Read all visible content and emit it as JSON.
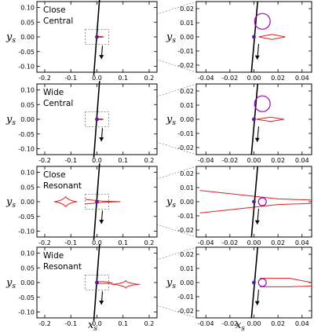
{
  "axes_labels": {
    "x_main": "x",
    "x_sub": "s",
    "y_main": "y",
    "y_sub": "s"
  },
  "chart_data": {
    "type": "scatter",
    "grid": false,
    "left_axes": {
      "xlim": [
        -0.23,
        0.23
      ],
      "ylim": [
        -0.12,
        0.12
      ],
      "xticks": [
        "-0.2",
        "-0.1",
        "0.0",
        "0.1",
        "0.2"
      ],
      "yticks": [
        "0.10",
        "0.05",
        "0.00",
        "-0.05",
        "-0.10"
      ]
    },
    "right_axes": {
      "xlim": [
        -0.048,
        0.048
      ],
      "ylim": [
        -0.025,
        0.025
      ],
      "xticks": [
        "-0.04",
        "-0.02",
        "0.00",
        "0.02",
        "0.04"
      ],
      "yticks": [
        "0.02",
        "0.01",
        "0.00",
        "-0.01",
        "-0.02"
      ]
    },
    "zoom_box": {
      "x": [
        -0.045,
        0.045
      ],
      "y": [
        -0.025,
        0.025
      ]
    },
    "source_trajectory": {
      "x": [
        0.01,
        -0.012
      ],
      "y": [
        0.13,
        -0.13
      ]
    },
    "rows": [
      {
        "title_line1": "Close",
        "title_line2": "Central",
        "lens_position": [
          0.0,
          0.0
        ],
        "source_position": [
          0.007,
          0.011
        ],
        "caustic": [
          [
            0.004,
            0.0
          ],
          [
            0.015,
            0.0018
          ],
          [
            0.026,
            0.0
          ],
          [
            0.015,
            -0.0018
          ],
          [
            0.004,
            0.0
          ]
        ]
      },
      {
        "title_line1": "Wide",
        "title_line2": "Central",
        "lens_position": [
          0.0,
          0.0
        ],
        "source_position": [
          0.007,
          0.011
        ],
        "caustic": [
          [
            0.002,
            0.0
          ],
          [
            0.014,
            0.0015
          ],
          [
            0.025,
            0.0
          ],
          [
            0.014,
            -0.0015
          ],
          [
            0.002,
            0.0
          ]
        ]
      },
      {
        "title_line1": "Close",
        "title_line2": "Resonant",
        "lens_position": [
          0.0,
          0.0
        ],
        "source_position": [
          0.007,
          0.0
        ],
        "caustic": [
          [
            -0.045,
            0.008
          ],
          [
            0.02,
            0.002
          ],
          [
            0.09,
            0.0
          ],
          [
            0.02,
            -0.002
          ],
          [
            -0.045,
            -0.008
          ]
        ],
        "planetary_caustic": {
          "center": [
            -0.12,
            0.0
          ],
          "half_width": 0.045,
          "half_height": 0.018
        }
      },
      {
        "title_line1": "Wide",
        "title_line2": "Resonant",
        "lens_position": [
          0.0,
          0.0
        ],
        "source_position": [
          0.007,
          0.0
        ],
        "caustic": [
          [
            0.005,
            0.003
          ],
          [
            0.03,
            0.003
          ],
          [
            0.06,
            -0.002
          ],
          [
            0.03,
            -0.003
          ],
          [
            0.005,
            -0.003
          ]
        ],
        "planetary_caustic": {
          "center": [
            0.11,
            -0.006
          ],
          "half_width": 0.055,
          "half_height": 0.012
        }
      }
    ]
  }
}
